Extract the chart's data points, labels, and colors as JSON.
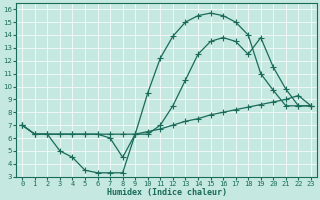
{
  "xlabel": "Humidex (Indice chaleur)",
  "bg_color": "#c5e8e0",
  "line_color": "#1a6b5a",
  "xlim": [
    -0.5,
    23.5
  ],
  "ylim": [
    3,
    16.5
  ],
  "xticks": [
    0,
    1,
    2,
    3,
    4,
    5,
    6,
    7,
    8,
    9,
    10,
    11,
    12,
    13,
    14,
    15,
    16,
    17,
    18,
    19,
    20,
    21,
    22,
    23
  ],
  "yticks": [
    3,
    4,
    5,
    6,
    7,
    8,
    9,
    10,
    11,
    12,
    13,
    14,
    15,
    16
  ],
  "line1_x": [
    0,
    1,
    2,
    3,
    4,
    5,
    6,
    7,
    8,
    9,
    10,
    11,
    12,
    13,
    14,
    15,
    16,
    17,
    18,
    19,
    20,
    21,
    22,
    23
  ],
  "line1_y": [
    7.0,
    6.3,
    6.3,
    5.0,
    4.5,
    3.5,
    3.3,
    3.3,
    3.3,
    6.3,
    9.5,
    12.2,
    13.9,
    15.0,
    15.5,
    15.7,
    15.5,
    15.0,
    14.0,
    11.0,
    9.7,
    8.5,
    8.5,
    8.5
  ],
  "line2_x": [
    0,
    1,
    2,
    3,
    4,
    5,
    6,
    7,
    8,
    9,
    10,
    11,
    12,
    13,
    14,
    15,
    16,
    17,
    18,
    19,
    20,
    21,
    22,
    23
  ],
  "line2_y": [
    7.0,
    6.3,
    6.3,
    6.3,
    6.3,
    6.3,
    6.3,
    6.0,
    4.5,
    6.3,
    6.3,
    7.0,
    8.5,
    10.5,
    12.5,
    13.5,
    13.8,
    13.5,
    12.5,
    13.8,
    11.5,
    9.8,
    8.5,
    8.5
  ],
  "line3_x": [
    0,
    1,
    2,
    3,
    4,
    5,
    6,
    7,
    8,
    9,
    10,
    11,
    12,
    13,
    14,
    15,
    16,
    17,
    18,
    19,
    20,
    21,
    22,
    23
  ],
  "line3_y": [
    7.0,
    6.3,
    6.3,
    6.3,
    6.3,
    6.3,
    6.3,
    6.3,
    6.3,
    6.3,
    6.5,
    6.7,
    7.0,
    7.3,
    7.5,
    7.8,
    8.0,
    8.2,
    8.4,
    8.6,
    8.8,
    9.0,
    9.3,
    8.5
  ]
}
